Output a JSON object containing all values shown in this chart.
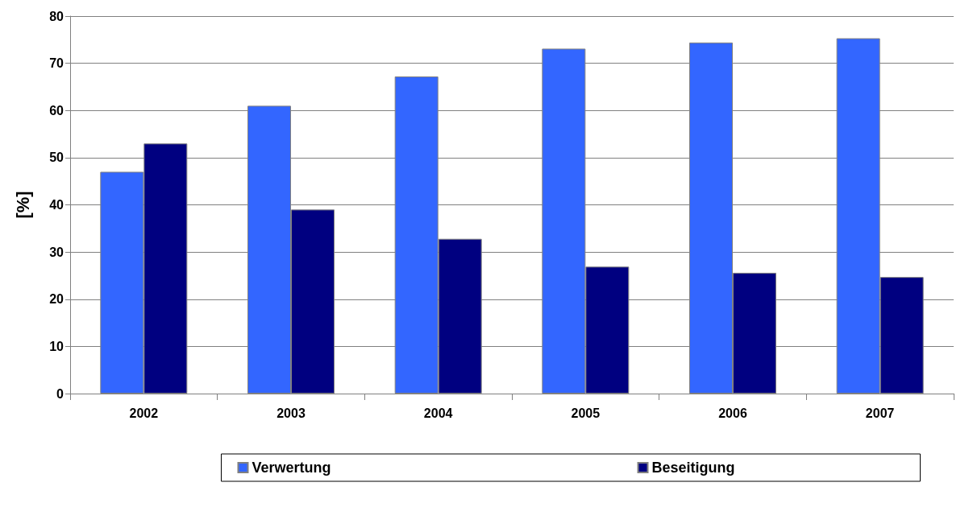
{
  "chart_data": {
    "type": "bar",
    "ylabel": "[%]",
    "categories": [
      "2002",
      "2003",
      "2004",
      "2005",
      "2006",
      "2007"
    ],
    "series": [
      {
        "name": "Verwertung",
        "color": "#3366ff",
        "values": [
          47,
          61,
          67.2,
          73.1,
          74.4,
          75.3
        ]
      },
      {
        "name": "Beseitigung",
        "color": "#000080",
        "values": [
          53,
          39,
          32.8,
          26.9,
          25.6,
          24.7
        ]
      }
    ],
    "ylim": [
      0,
      80
    ],
    "yticks": [
      0,
      10,
      20,
      30,
      40,
      50,
      60,
      70,
      80
    ],
    "grid": "y",
    "legend": "bottom"
  }
}
